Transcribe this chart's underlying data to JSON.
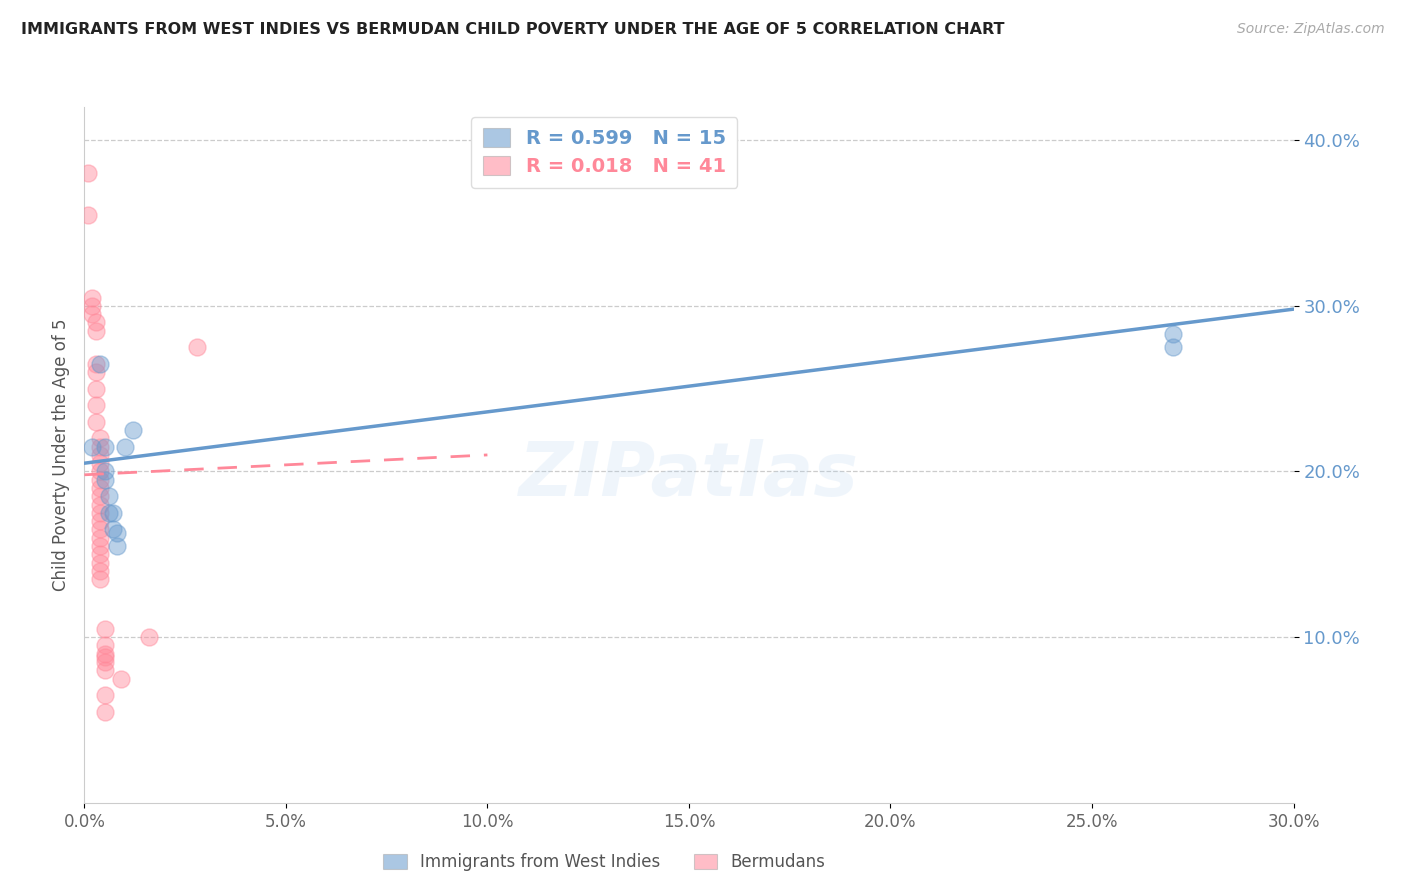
{
  "title": "IMMIGRANTS FROM WEST INDIES VS BERMUDAN CHILD POVERTY UNDER THE AGE OF 5 CORRELATION CHART",
  "source": "Source: ZipAtlas.com",
  "ylabel": "Child Poverty Under the Age of 5",
  "legend_labels": [
    "Immigrants from West Indies",
    "Bermudans"
  ],
  "legend_r": [
    "R = 0.599",
    "R = 0.018"
  ],
  "legend_n": [
    "N = 15",
    "N = 41"
  ],
  "xlim": [
    0.0,
    0.3
  ],
  "ylim": [
    0.0,
    0.42
  ],
  "yticks": [
    0.1,
    0.2,
    0.3,
    0.4
  ],
  "xticks": [
    0.0,
    0.05,
    0.1,
    0.15,
    0.2,
    0.25,
    0.3
  ],
  "blue_color": "#6699CC",
  "pink_color": "#FF8899",
  "blue_scatter_x": [
    0.002,
    0.004,
    0.005,
    0.005,
    0.005,
    0.006,
    0.006,
    0.007,
    0.007,
    0.008,
    0.008,
    0.01,
    0.012,
    0.27,
    0.27
  ],
  "blue_scatter_y": [
    0.215,
    0.265,
    0.215,
    0.2,
    0.195,
    0.185,
    0.175,
    0.175,
    0.165,
    0.163,
    0.155,
    0.215,
    0.225,
    0.275,
    0.283
  ],
  "pink_scatter_x": [
    0.001,
    0.001,
    0.002,
    0.002,
    0.002,
    0.003,
    0.003,
    0.003,
    0.003,
    0.003,
    0.003,
    0.003,
    0.004,
    0.004,
    0.004,
    0.004,
    0.004,
    0.004,
    0.004,
    0.004,
    0.004,
    0.004,
    0.004,
    0.004,
    0.004,
    0.004,
    0.004,
    0.004,
    0.004,
    0.004,
    0.005,
    0.005,
    0.005,
    0.005,
    0.005,
    0.005,
    0.005,
    0.005,
    0.016,
    0.028,
    0.009
  ],
  "pink_scatter_y": [
    0.38,
    0.355,
    0.305,
    0.3,
    0.295,
    0.29,
    0.285,
    0.265,
    0.26,
    0.25,
    0.24,
    0.23,
    0.22,
    0.215,
    0.21,
    0.205,
    0.2,
    0.195,
    0.19,
    0.185,
    0.18,
    0.175,
    0.17,
    0.165,
    0.16,
    0.155,
    0.15,
    0.145,
    0.14,
    0.135,
    0.105,
    0.095,
    0.09,
    0.088,
    0.085,
    0.08,
    0.065,
    0.055,
    0.1,
    0.275,
    0.075
  ],
  "blue_line_x": [
    0.0,
    0.3
  ],
  "blue_line_y": [
    0.205,
    0.298
  ],
  "pink_line_x": [
    0.0,
    0.1
  ],
  "pink_line_y": [
    0.198,
    0.21
  ]
}
